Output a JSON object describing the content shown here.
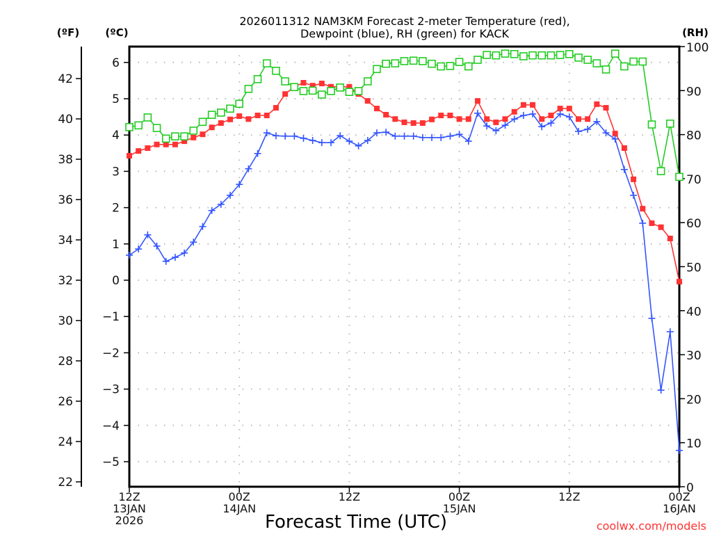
{
  "chart_data": {
    "type": "line",
    "title": [
      "2026011312 NAM3KM Forecast 2-meter Temperature (red),",
      "Dewpoint (blue), RH (green) for KACK"
    ],
    "xlabel": "Forecast Time (UTC)",
    "credit": "coolwx.com/models",
    "units": {
      "fahrenheit": "(ºF)",
      "celsius": "(ºC)",
      "rh": "(RH)"
    },
    "x_hours_range": [
      0,
      60
    ],
    "x_ticks": [
      {
        "hour": 0,
        "lines": [
          "12Z",
          "13JAN",
          "2026"
        ]
      },
      {
        "hour": 12,
        "lines": [
          "00Z",
          "14JAN"
        ]
      },
      {
        "hour": 24,
        "lines": [
          "12Z"
        ]
      },
      {
        "hour": 36,
        "lines": [
          "00Z",
          "15JAN"
        ]
      },
      {
        "hour": 48,
        "lines": [
          "12Z"
        ]
      },
      {
        "hour": 60,
        "lines": [
          "00Z",
          "16JAN"
        ]
      }
    ],
    "celsius_axis": {
      "range": [
        -5.7,
        6.4
      ],
      "ticks": [
        6,
        5,
        4,
        3,
        2,
        1,
        0,
        -1,
        -2,
        -3,
        -4,
        -5
      ]
    },
    "fahrenheit_axis": {
      "ticks": [
        42,
        40,
        38,
        36,
        34,
        32,
        30,
        28,
        26,
        24,
        22
      ]
    },
    "rh_axis": {
      "range": [
        0,
        100
      ],
      "ticks": [
        100,
        90,
        80,
        70,
        60,
        50,
        40,
        30,
        20,
        10,
        0
      ]
    },
    "grid": true,
    "series": [
      {
        "name": "Temperature",
        "axis": "celsius",
        "color": "#ff3333",
        "marker": "filled-square",
        "values": [
          3.43,
          3.56,
          3.64,
          3.74,
          3.74,
          3.74,
          3.83,
          3.93,
          4.02,
          4.21,
          4.33,
          4.43,
          4.52,
          4.44,
          4.54,
          4.54,
          4.75,
          5.13,
          5.33,
          5.44,
          5.36,
          5.42,
          5.33,
          5.33,
          5.33,
          5.13,
          4.94,
          4.73,
          4.56,
          4.44,
          4.35,
          4.33,
          4.33,
          4.43,
          4.54,
          4.54,
          4.44,
          4.44,
          4.94,
          4.44,
          4.35,
          4.44,
          4.64,
          4.83,
          4.83,
          4.44,
          4.54,
          4.73,
          4.73,
          4.44,
          4.44,
          4.85,
          4.75,
          4.04,
          3.64,
          2.78,
          1.97,
          1.57,
          1.46,
          1.15,
          -0.04
        ]
      },
      {
        "name": "Dewpoint",
        "axis": "celsius",
        "color": "#3355ff",
        "marker": "plus",
        "values": [
          0.69,
          0.86,
          1.25,
          0.94,
          0.52,
          0.63,
          0.75,
          1.05,
          1.48,
          1.92,
          2.09,
          2.34,
          2.64,
          3.07,
          3.49,
          4.06,
          3.98,
          3.97,
          3.97,
          3.91,
          3.85,
          3.79,
          3.79,
          3.98,
          3.83,
          3.7,
          3.85,
          4.06,
          4.08,
          3.97,
          3.97,
          3.97,
          3.93,
          3.93,
          3.93,
          3.97,
          4.02,
          3.83,
          4.6,
          4.25,
          4.12,
          4.27,
          4.44,
          4.54,
          4.58,
          4.23,
          4.33,
          4.58,
          4.5,
          4.1,
          4.16,
          4.37,
          4.06,
          3.89,
          3.05,
          2.34,
          1.57,
          -1.05,
          -3.03,
          -1.42,
          -4.69
        ]
      },
      {
        "name": "RH",
        "axis": "rh",
        "color": "#22cc22",
        "marker": "open-square",
        "values": [
          81.7,
          82.1,
          83.9,
          81.5,
          79.1,
          79.6,
          79.6,
          80.9,
          82.9,
          84.5,
          85.0,
          85.9,
          87.0,
          90.4,
          92.6,
          96.2,
          94.5,
          92.1,
          90.8,
          89.9,
          90.0,
          89.1,
          89.9,
          90.7,
          89.7,
          89.9,
          92.1,
          94.9,
          96.1,
          96.2,
          96.7,
          96.8,
          96.7,
          96.1,
          95.5,
          95.6,
          96.5,
          95.5,
          97.0,
          98.1,
          98.0,
          98.4,
          98.3,
          97.8,
          98.0,
          98.0,
          98.0,
          98.1,
          98.3,
          97.5,
          97.0,
          96.2,
          94.8,
          98.4,
          95.5,
          96.6,
          96.6,
          82.3,
          71.7,
          82.5,
          70.4
        ]
      }
    ]
  }
}
